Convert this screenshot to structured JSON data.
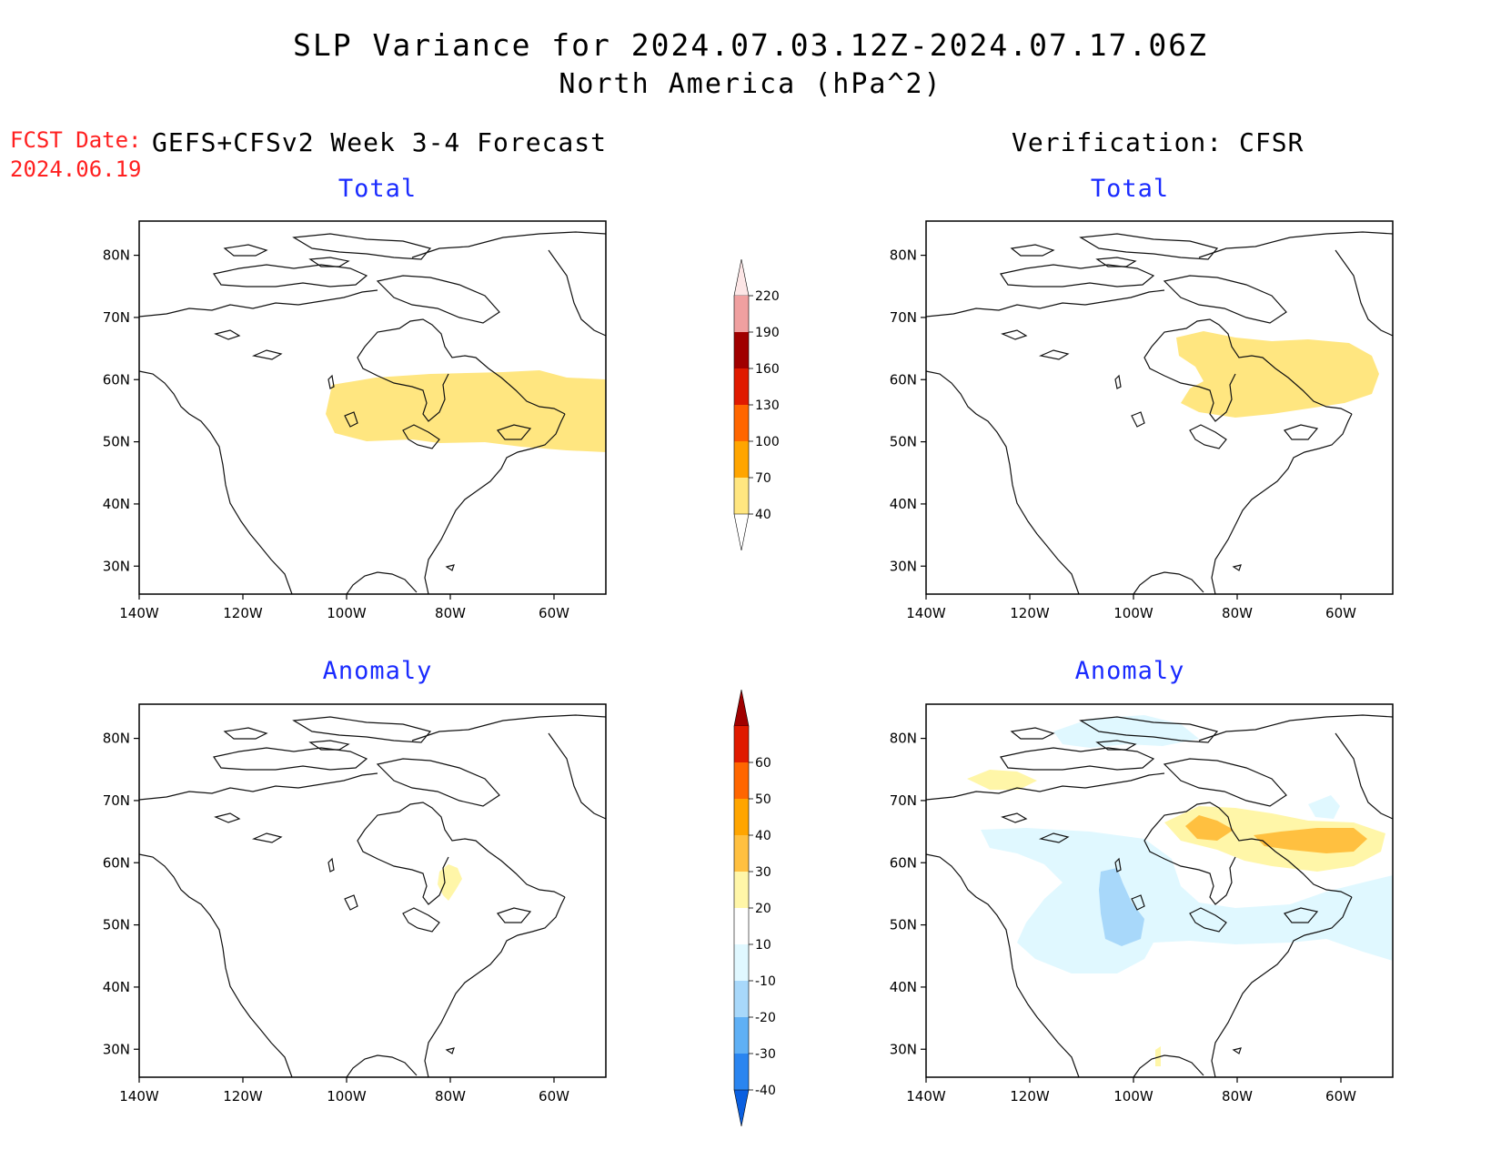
{
  "title": {
    "line1": "SLP Variance for 2024.07.03.12Z-2024.07.17.06Z",
    "line2": "North America (hPa^2)"
  },
  "forecast_info": {
    "label": "FCST Date:",
    "date": "2024.06.19"
  },
  "headers": {
    "left": "GEFS+CFSv2 Week 3-4 Forecast",
    "right": "Verification: CFSR"
  },
  "panel_titles": {
    "total": "Total",
    "anomaly": "Anomaly"
  },
  "axes": {
    "lon_labels": [
      "140W",
      "120W",
      "100W",
      "80W",
      "60W"
    ],
    "lat_labels": [
      "30N",
      "40N",
      "50N",
      "60N",
      "70N",
      "80N"
    ]
  },
  "colorbars": {
    "total": {
      "labels": [
        "40",
        "70",
        "100",
        "130",
        "160",
        "190",
        "220"
      ],
      "colors": [
        "#ffffff",
        "#ffe680",
        "#ffa500",
        "#ff6600",
        "#e01a00",
        "#a00000",
        "#f0a0a0",
        "#fde6e6"
      ]
    },
    "anomaly": {
      "labels": [
        "-40",
        "-30",
        "-20",
        "-10",
        "10",
        "20",
        "30",
        "40",
        "50",
        "60"
      ],
      "colors": [
        "#0a5fe0",
        "#2a85f0",
        "#5fb0f5",
        "#a8d8fa",
        "#e0f8ff",
        "#ffffff",
        "#fff6a8",
        "#ffc040",
        "#ffa500",
        "#ff6600",
        "#e01a00",
        "#a00000"
      ]
    }
  },
  "chart_data": [
    {
      "type": "map",
      "panel": "Forecast Total",
      "shaded_range": "40-70",
      "region": "band ~50N-60N from 104W to 50W"
    },
    {
      "type": "map",
      "panel": "Verification Total",
      "shaded_range": "40-70",
      "region": "Hudson Bay / Quebec ~52N-65N"
    },
    {
      "type": "map",
      "panel": "Forecast Anomaly",
      "shaded_range": "10-20",
      "region": "small patch near 80W 55N"
    },
    {
      "type": "map",
      "panel": "Verification Anomaly",
      "shaded_ranges": [
        "-20 to -10",
        "-10 to -20 core",
        "10-20",
        "20-30"
      ],
      "region": "negative over central Canada and N Atlantic; positive over Hudson Bay / Labrador"
    }
  ]
}
